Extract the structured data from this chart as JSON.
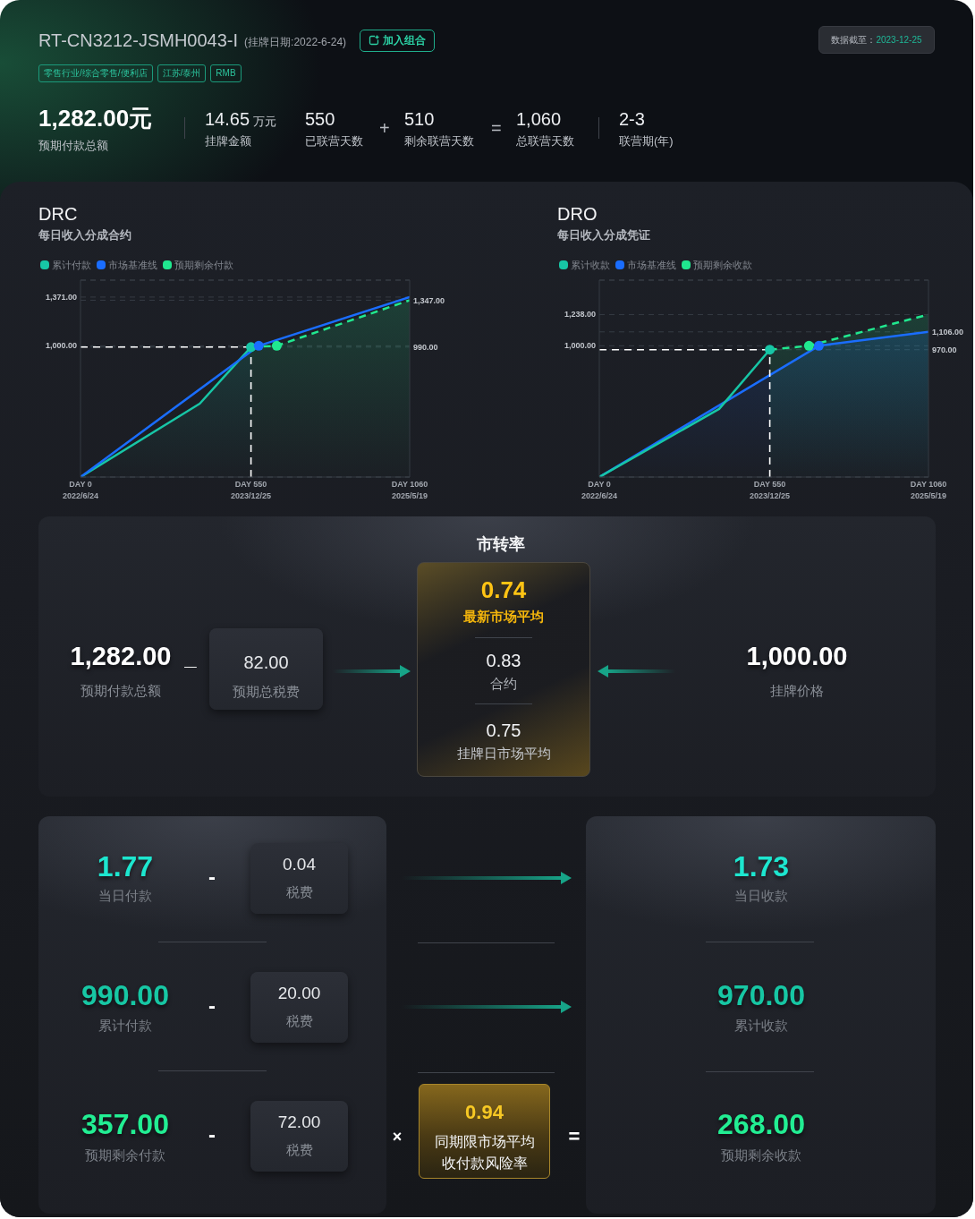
{
  "chart_data": [
    {
      "type": "other",
      "title": "RT-CN3212-JSMH0043-I",
      "subtitle": "(挂牌日期:2022-6-24)",
      "annotations": [
        "加入组合",
        "零售行业/综合零售/便利店",
        "江苏/泰州",
        "RMB",
        "数据截至：",
        "2023-12-25",
        "1,282.00元",
        "预期付款总额",
        "14.65",
        "万元",
        "挂牌金额",
        "550",
        "已联营天数",
        "+",
        "510",
        "剩余联营天数",
        "=",
        "1,060",
        "总联营天数",
        "2-3",
        "联营期(年)"
      ]
    },
    {
      "type": "line",
      "title": "DRC",
      "subtitle": "每日收入分成合约",
      "xlim": [
        "2022-06-24",
        "2025-05-19"
      ],
      "xticks": [
        {
          "value": "2022-06-24",
          "label": "DAY 0\n2022/6/24"
        },
        {
          "value": "2023-12-25",
          "label": "DAY 550\n2023/12/25"
        },
        {
          "value": "2025-05-19",
          "label": "DAY 1060\n2025/5/19"
        }
      ],
      "ylim": [
        0,
        1500
      ],
      "yticks": [
        {
          "value": 1000,
          "label": "1,000.00"
        },
        {
          "value": 1371,
          "label": "1,371.00"
        }
      ],
      "y2lim": [
        0,
        1500
      ],
      "y2ticks": [
        {
          "value": 990,
          "label": "990.00"
        },
        {
          "value": 1347,
          "label": "1,347.00"
        }
      ],
      "grid": "y",
      "legend": "top left",
      "series": [
        {
          "name": "累计付款",
          "type": "area",
          "color": "#17c6a6",
          "x": [
            "2022-06-24",
            "2023-07-13",
            "2023-12-25"
          ],
          "values": [
            0,
            559,
            990
          ]
        },
        {
          "name": "市场基准线",
          "type": "line",
          "color": "#1a6dff",
          "x": [
            "2022-06-24",
            "2024-01-19",
            "2025-05-19"
          ],
          "values": [
            0,
            1000,
            1371
          ]
        },
        {
          "name": "预期剩余付款",
          "type": "area",
          "color": "#20e88f",
          "line_style": "dashed",
          "x": [
            "2023-12-25",
            "2024-03-17",
            "2025-05-19"
          ],
          "values": [
            990,
            1000,
            1347
          ]
        },
        {
          "type": "scatter",
          "marker": "circle",
          "x": [
            "2023-12-25",
            "2024-01-19",
            "2024-03-17"
          ],
          "values": [
            990,
            1000,
            1000
          ],
          "colors": [
            "#17c6a6",
            "#1a6dff",
            "#20e88f"
          ]
        }
      ],
      "ref_lines": [
        {
          "axis": "y",
          "value": 990,
          "color": "#ffffff",
          "line_style": "dashed"
        },
        {
          "axis": "x",
          "value": "2023-12-25",
          "color": "#ffffff",
          "line_style": "dashed"
        }
      ]
    },
    {
      "type": "line",
      "title": "DRO",
      "subtitle": "每日收入分成凭证",
      "xlim": [
        "2022-06-24",
        "2025-05-19"
      ],
      "xticks": [
        {
          "value": "2022-06-24",
          "label": "DAY 0\n2022/6/24"
        },
        {
          "value": "2023-12-25",
          "label": "DAY 550\n2023/12/25"
        },
        {
          "value": "2025-05-19",
          "label": "DAY 1060\n2025/5/19"
        }
      ],
      "ylim": [
        0,
        1500
      ],
      "yticks": [
        {
          "value": 1000,
          "label": "1,000.00"
        },
        {
          "value": 1238,
          "label": "1,238.00"
        }
      ],
      "y2lim": [
        0,
        1500
      ],
      "y2ticks": [
        {
          "value": 970,
          "label": "970.00"
        },
        {
          "value": 1106,
          "label": "1,106.00"
        }
      ],
      "grid": "y",
      "legend": "top left",
      "series": [
        {
          "name": "累计收款",
          "type": "line",
          "color": "#17c6a6",
          "x": [
            "2022-06-24",
            "2023-07-15",
            "2023-12-25"
          ],
          "values": [
            0,
            519,
            970
          ]
        },
        {
          "name": "市场基准线",
          "type": "area",
          "color": "#1a6dff",
          "x": [
            "2022-06-24",
            "2024-05-31",
            "2025-05-19"
          ],
          "values": [
            0,
            1000,
            1106
          ]
        },
        {
          "name": "预期剩余收款",
          "type": "area",
          "color": "#20e88f",
          "line_style": "dashed",
          "x": [
            "2023-12-25",
            "2024-04-29",
            "2025-05-19"
          ],
          "values": [
            970,
            1000,
            1238
          ]
        },
        {
          "type": "scatter",
          "marker": "circle",
          "x": [
            "2023-12-25",
            "2024-04-29",
            "2024-05-31"
          ],
          "values": [
            970,
            1000,
            1000
          ],
          "colors": [
            "#17c6a6",
            "#20e88f",
            "#1a6dff"
          ]
        }
      ],
      "ref_lines": [
        {
          "axis": "y",
          "value": 970,
          "color": "#ffffff",
          "line_style": "dashed"
        },
        {
          "axis": "x",
          "value": "2023-12-25",
          "color": "#ffffff",
          "line_style": "dashed"
        }
      ]
    },
    {
      "type": "other",
      "title": "市转率",
      "annotations": [
        "1,282.00",
        "预期付款总额",
        "_",
        "82.00",
        "预期总税费",
        "0.74",
        "最新市场平均",
        "0.83",
        "合约",
        "0.75",
        "挂牌日市场平均",
        "1,000.00",
        "挂牌价格"
      ]
    },
    {
      "type": "other",
      "annotations": [
        "1.77",
        "当日付款",
        "-",
        "0.04",
        "税费",
        "990.00",
        "累计付款",
        "-",
        "20.00",
        "税费",
        "357.00",
        "预期剩余付款",
        "-",
        "72.00",
        "税费",
        "×",
        "0.94",
        "同期限市场平均收付款风险率",
        "=",
        "1.73",
        "当日收款",
        "970.00",
        "累计收款",
        "268.00",
        "预期剩余收款"
      ]
    }
  ]
}
